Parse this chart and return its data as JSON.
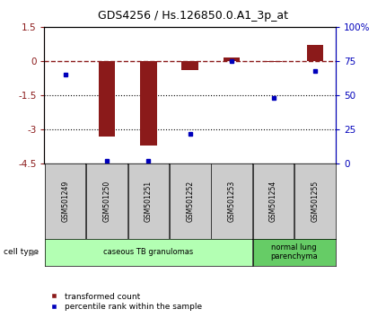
{
  "title": "GDS4256 / Hs.126850.0.A1_3p_at",
  "samples": [
    "GSM501249",
    "GSM501250",
    "GSM501251",
    "GSM501252",
    "GSM501253",
    "GSM501254",
    "GSM501255"
  ],
  "red_values": [
    0.0,
    -3.3,
    -3.7,
    -0.4,
    0.15,
    -0.05,
    0.7
  ],
  "blue_values_pct": [
    65,
    2,
    2,
    22,
    75,
    48,
    68
  ],
  "ylim_left": [
    -4.5,
    1.5
  ],
  "ylim_right": [
    0,
    100
  ],
  "left_ticks": [
    1.5,
    0,
    -1.5,
    -3,
    -4.5
  ],
  "right_ticks": [
    100,
    75,
    50,
    25,
    0
  ],
  "right_tick_labels": [
    "100%",
    "75",
    "50",
    "25",
    "0"
  ],
  "dotted_lines": [
    -1.5,
    -3.0
  ],
  "cell_type_groups": [
    {
      "label": "caseous TB granulomas",
      "samples": [
        0,
        1,
        2,
        3,
        4
      ],
      "color": "#b3ffb3"
    },
    {
      "label": "normal lung\nparenchyma",
      "samples": [
        5,
        6
      ],
      "color": "#66cc66"
    }
  ],
  "legend_red": "transformed count",
  "legend_blue": "percentile rank within the sample",
  "cell_type_label": "cell type",
  "bar_color": "#8b1a1a",
  "dot_color": "#0000bb",
  "gray_box_color": "#cccccc"
}
